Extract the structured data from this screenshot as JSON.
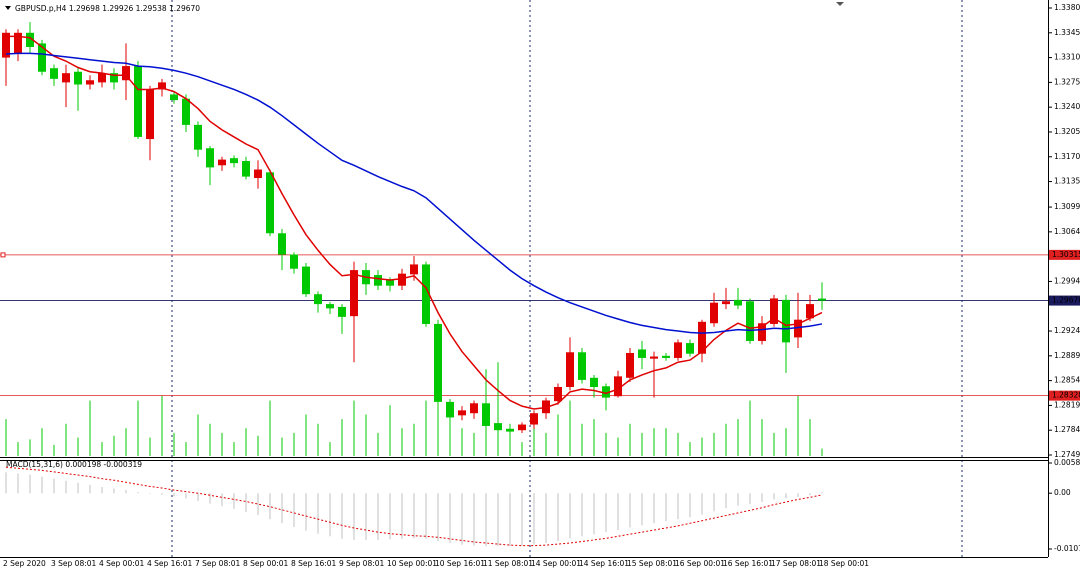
{
  "chart_data": [
    {
      "type": "candlestick",
      "title": "GBPUSD.p,H4  1.29698 1.29926 1.29538 1.29670",
      "bull_color": "#e00000",
      "bear_color": "#00c800",
      "volume_color": "#00c800",
      "categories": [
        "2 Sep 2020",
        null,
        null,
        null,
        "3 Sep 08:01",
        null,
        null,
        null,
        "4 Sep 00:01",
        null,
        null,
        null,
        "4 Sep 16:01",
        null,
        null,
        null,
        "7 Sep 08:01",
        null,
        null,
        null,
        "8 Sep 00:01",
        null,
        null,
        null,
        "8 Sep 16:01",
        null,
        null,
        null,
        "9 Sep 08:01",
        null,
        null,
        null,
        "10 Sep 00:01",
        null,
        null,
        null,
        "10 Sep 16:01",
        null,
        null,
        null,
        "11 Sep 08:01",
        null,
        null,
        null,
        "14 Sep 00:01",
        null,
        null,
        null,
        "14 Sep 16:01",
        null,
        null,
        null,
        "15 Sep 08:01",
        null,
        null,
        null,
        "16 Sep 00:01",
        null,
        null,
        null,
        "16 Sep 16:01",
        null,
        null,
        null,
        "17 Sep 08:01",
        null,
        null,
        null,
        "18 Sep 00:01"
      ],
      "open": [
        1.331,
        1.3315,
        1.3345,
        1.333,
        1.3295,
        1.3275,
        1.329,
        1.3272,
        1.3275,
        1.3288,
        1.3278,
        1.3298,
        1.3195,
        1.3265,
        1.3258,
        1.3252,
        1.3215,
        1.3182,
        1.3158,
        1.3168,
        1.3164,
        1.314,
        1.3148,
        1.3062,
        1.3032,
        1.3015,
        1.2976,
        1.2962,
        1.2958,
        1.2945,
        1.301,
        1.3003,
        1.2996,
        1.2988,
        1.3004,
        1.3018,
        1.2934,
        1.2824,
        1.2805,
        1.2808,
        1.2822,
        1.2794,
        1.2786,
        1.2784,
        1.2792,
        1.2808,
        1.2825,
        1.2845,
        1.2894,
        1.2858,
        1.2846,
        1.2832,
        1.2858,
        1.2898,
        1.2885,
        1.2889,
        1.2886,
        1.2907,
        1.2892,
        1.2935,
        1.2962,
        1.2968,
        1.2966,
        1.291,
        1.2934,
        1.2968,
        1.2915,
        1.2942,
        1.29698
      ],
      "high": [
        1.335,
        1.335,
        1.336,
        1.3335,
        1.33,
        1.33,
        1.3295,
        1.3285,
        1.33,
        1.3295,
        1.333,
        1.3305,
        1.327,
        1.328,
        1.3262,
        1.3258,
        1.322,
        1.3185,
        1.317,
        1.3172,
        1.317,
        1.3165,
        1.3152,
        1.3068,
        1.3035,
        1.302,
        1.298,
        1.2965,
        1.2962,
        1.3022,
        1.302,
        1.301,
        1.3,
        1.3012,
        1.303,
        1.3022,
        1.294,
        1.2828,
        1.2818,
        1.2826,
        1.287,
        1.288,
        1.279,
        1.2795,
        1.2812,
        1.283,
        1.285,
        1.2915,
        1.29,
        1.2862,
        1.285,
        1.2868,
        1.29,
        1.291,
        1.2895,
        1.2893,
        1.2912,
        1.2912,
        1.294,
        1.2978,
        1.2985,
        1.2985,
        1.297,
        1.2945,
        1.2975,
        1.2975,
        1.2978,
        1.2975,
        1.29926
      ],
      "low": [
        1.327,
        1.3305,
        1.3315,
        1.3285,
        1.327,
        1.324,
        1.3235,
        1.3265,
        1.3268,
        1.3265,
        1.325,
        1.3195,
        1.3165,
        1.3255,
        1.3245,
        1.3205,
        1.317,
        1.313,
        1.315,
        1.3155,
        1.3138,
        1.3125,
        1.3058,
        1.301,
        1.3005,
        1.2972,
        1.295,
        1.2948,
        1.292,
        1.288,
        1.2975,
        1.2982,
        1.298,
        1.2982,
        1.2995,
        1.293,
        1.282,
        1.279,
        1.2798,
        1.28,
        1.2762,
        1.278,
        1.2776,
        1.278,
        1.2786,
        1.28,
        1.282,
        1.284,
        1.285,
        1.283,
        1.2812,
        1.283,
        1.2852,
        1.287,
        1.283,
        1.2882,
        1.2882,
        1.2888,
        1.288,
        1.293,
        1.2955,
        1.2955,
        1.2906,
        1.2905,
        1.293,
        1.2865,
        1.29,
        1.2938,
        1.29538
      ],
      "close": [
        1.3345,
        1.3345,
        1.3325,
        1.329,
        1.328,
        1.3288,
        1.3272,
        1.3278,
        1.3288,
        1.3275,
        1.3298,
        1.3198,
        1.3265,
        1.3275,
        1.325,
        1.3215,
        1.318,
        1.3155,
        1.3166,
        1.3161,
        1.3142,
        1.3152,
        1.3062,
        1.3032,
        1.3012,
        1.2976,
        1.2962,
        1.2956,
        1.2944,
        1.301,
        1.299,
        1.2988,
        1.2988,
        1.3005,
        1.3018,
        1.2934,
        1.2824,
        1.2802,
        1.2812,
        1.2822,
        1.279,
        1.2784,
        1.2782,
        1.2792,
        1.2808,
        1.2826,
        1.2845,
        1.2894,
        1.2855,
        1.2845,
        1.283,
        1.286,
        1.2893,
        1.2886,
        1.2888,
        1.2886,
        1.2908,
        1.2892,
        1.2937,
        1.2964,
        1.2966,
        1.296,
        1.291,
        1.2935,
        1.297,
        1.2908,
        1.294,
        1.2962,
        1.2967
      ],
      "volume": [
        4000,
        1500,
        1800,
        3000,
        1200,
        3500,
        2000,
        6000,
        1500,
        2200,
        3000,
        6000,
        2000,
        6500,
        2500,
        1500,
        4500,
        3500,
        2500,
        1500,
        3000,
        2200,
        6000,
        2000,
        2500,
        4500,
        3500,
        1500,
        4000,
        6000,
        4500,
        2500,
        5500,
        3000,
        3500,
        6000,
        6500,
        5500,
        3000,
        2500,
        4000,
        6000,
        3500,
        1500,
        3000,
        2500,
        4500,
        6000,
        3500,
        4000,
        2500,
        2000,
        3500,
        2500,
        3000,
        3000,
        2500,
        1500,
        2000,
        2500,
        3500,
        4000,
        6000,
        4000,
        2500,
        3000,
        6500,
        4000,
        800
      ],
      "series": [
        {
          "color": "#e00000",
          "values": [
            1.334,
            1.334,
            1.3338,
            1.3325,
            1.3312,
            1.3305,
            1.3296,
            1.329,
            1.3288,
            1.3285,
            1.3285,
            1.3265,
            1.3265,
            1.3267,
            1.3262,
            1.3252,
            1.3238,
            1.322,
            1.3208,
            1.3198,
            1.3188,
            1.318,
            1.315,
            1.3118,
            1.3088,
            1.306,
            1.3038,
            1.3018,
            1.3002,
            1.3004,
            1.3,
            1.2998,
            1.2996,
            1.2998,
            1.3002,
            1.2985,
            1.295,
            1.292,
            1.2895,
            1.2875,
            1.2855,
            1.284,
            1.2826,
            1.2818,
            1.2814,
            1.2816,
            1.2822,
            1.2838,
            1.2842,
            1.284,
            1.2836,
            1.2842,
            1.2855,
            1.2862,
            1.2868,
            1.2872,
            1.288,
            1.2883,
            1.2895,
            1.2912,
            1.2925,
            1.2935,
            1.2928,
            1.293,
            1.2942,
            1.2932,
            1.2934,
            1.2942,
            1.295
          ]
        },
        {
          "color": "#0010d0",
          "values": [
            1.3315,
            1.3316,
            1.3316,
            1.3315,
            1.3313,
            1.3311,
            1.3309,
            1.3307,
            1.3305,
            1.3303,
            1.3302,
            1.3298,
            1.3297,
            1.3295,
            1.3292,
            1.3288,
            1.3283,
            1.3277,
            1.3271,
            1.3265,
            1.3258,
            1.325,
            1.324,
            1.3228,
            1.3215,
            1.3202,
            1.3189,
            1.3177,
            1.3165,
            1.3158,
            1.315,
            1.3142,
            1.3135,
            1.3128,
            1.3122,
            1.3112,
            1.3097,
            1.3082,
            1.3067,
            1.3052,
            1.3038,
            1.3024,
            1.301,
            1.2998,
            1.2988,
            1.2979,
            1.2971,
            1.2964,
            1.2958,
            1.2952,
            1.2946,
            1.2941,
            1.2936,
            1.2932,
            1.2929,
            1.2926,
            1.2924,
            1.2922,
            1.2921,
            1.2922,
            1.2924,
            1.2926,
            1.2925,
            1.2926,
            1.2928,
            1.2927,
            1.2929,
            1.2931,
            1.2934
          ]
        }
      ],
      "ylim": [
        1.2749,
        1.338
      ],
      "yticks": [
        {
          "value": 1.338,
          "label": "1.33800"
        },
        {
          "value": 1.3345,
          "label": "1.33450"
        },
        {
          "value": 1.331,
          "label": "1.33100"
        },
        {
          "value": 1.3275,
          "label": "1.32750"
        },
        {
          "value": 1.324,
          "label": "1.32400"
        },
        {
          "value": 1.3205,
          "label": "1.32050"
        },
        {
          "value": 1.317,
          "label": "1.31700"
        },
        {
          "value": 1.3135,
          "label": "1.31350"
        },
        {
          "value": 1.3099,
          "label": "1.30990"
        },
        {
          "value": 1.3064,
          "label": "1.30640"
        },
        {
          "value": 1.2994,
          "label": "1.29940"
        },
        {
          "value": 1.2924,
          "label": "1.29240"
        },
        {
          "value": 1.2889,
          "label": "1.28890"
        },
        {
          "value": 1.2854,
          "label": "1.28540"
        },
        {
          "value": 1.2819,
          "label": "1.28190"
        },
        {
          "value": 1.2784,
          "label": "1.27840"
        },
        {
          "value": 1.2749,
          "label": "1.27490"
        }
      ],
      "levels": [
        {
          "value": 1.30315,
          "label": "1.30315",
          "color": "#e02020"
        },
        {
          "value": 1.28328,
          "label": "1.28328",
          "color": "#e02020"
        }
      ],
      "price_line": {
        "value": 1.2967,
        "label": "1.29670",
        "color": "#1a1a5e"
      }
    },
    {
      "type": "macd",
      "title": "MACD(15,31,6) 0.000198 -0.000319",
      "histogram_color": "#c0c0c0",
      "signal_color": "#e00000",
      "histogram": [
        0.004,
        0.0038,
        0.0036,
        0.0032,
        0.0028,
        0.0024,
        0.002,
        0.0016,
        0.0012,
        0.0009,
        0.0006,
        0.0002,
        -0.0001,
        -0.0003,
        -0.0006,
        -0.001,
        -0.0015,
        -0.002,
        -0.0025,
        -0.003,
        -0.0036,
        -0.0042,
        -0.005,
        -0.0058,
        -0.0065,
        -0.0072,
        -0.0078,
        -0.0083,
        -0.0088,
        -0.009,
        -0.009,
        -0.009,
        -0.0089,
        -0.0088,
        -0.0087,
        -0.0088,
        -0.0092,
        -0.0096,
        -0.0099,
        -0.0101,
        -0.0102,
        -0.0102,
        -0.0102,
        -0.0101,
        -0.0099,
        -0.0096,
        -0.0092,
        -0.0087,
        -0.0083,
        -0.0079,
        -0.0075,
        -0.0071,
        -0.0066,
        -0.0062,
        -0.0058,
        -0.0054,
        -0.005,
        -0.0046,
        -0.0041,
        -0.0035,
        -0.0029,
        -0.0024,
        -0.0021,
        -0.0017,
        -0.0012,
        -0.001,
        -0.0007,
        -0.0004,
        0.000198
      ],
      "signal": [
        0.005,
        0.0048,
        0.0046,
        0.0044,
        0.0041,
        0.0038,
        0.0035,
        0.0032,
        0.0028,
        0.0025,
        0.0021,
        0.0017,
        0.0013,
        0.001,
        0.0006,
        0.0003,
        0.0,
        -0.0004,
        -0.0008,
        -0.0012,
        -0.0016,
        -0.0021,
        -0.0026,
        -0.0032,
        -0.0038,
        -0.0044,
        -0.005,
        -0.0056,
        -0.0062,
        -0.0067,
        -0.0071,
        -0.0075,
        -0.0078,
        -0.008,
        -0.0082,
        -0.0083,
        -0.0085,
        -0.0088,
        -0.0091,
        -0.0094,
        -0.0096,
        -0.0098,
        -0.01,
        -0.0101,
        -0.0101,
        -0.01,
        -0.0098,
        -0.0096,
        -0.0093,
        -0.009,
        -0.0087,
        -0.0083,
        -0.0079,
        -0.0075,
        -0.0071,
        -0.0067,
        -0.0063,
        -0.0058,
        -0.0053,
        -0.0048,
        -0.0043,
        -0.0038,
        -0.0033,
        -0.0028,
        -0.0022,
        -0.0017,
        -0.0012,
        -0.0008,
        -0.000319
      ],
      "ylim": [
        -0.01075,
        0.005817
      ],
      "yticks": [
        {
          "value": 0.005817,
          "label": "0.005817"
        },
        {
          "value": 0,
          "label": "0.00"
        },
        {
          "value": -0.01075,
          "label": "-0.01075"
        }
      ]
    }
  ]
}
